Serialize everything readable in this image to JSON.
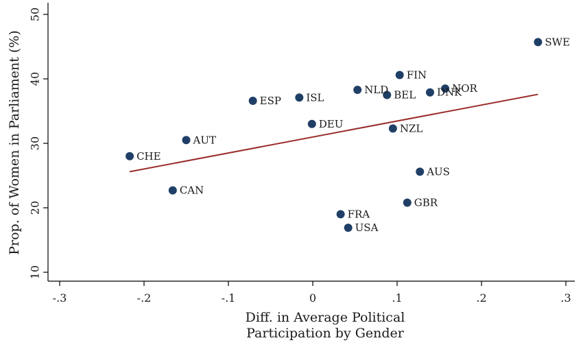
{
  "chart_data": {
    "type": "scatter",
    "title": "",
    "xlabel_lines": [
      "Diff. in Average Political",
      "Participation by Gender"
    ],
    "ylabel": "Prop. of Women in Parliament (%)",
    "xlim": [
      -0.3,
      0.3
    ],
    "ylim": [
      10,
      50
    ],
    "x_ticks": [
      {
        "value": -0.3,
        "label": "-.3"
      },
      {
        "value": -0.2,
        "label": "-.2"
      },
      {
        "value": -0.1,
        "label": "-.1"
      },
      {
        "value": 0,
        "label": "0"
      },
      {
        "value": 0.1,
        "label": ".1"
      },
      {
        "value": 0.2,
        "label": ".2"
      },
      {
        "value": 0.3,
        "label": ".3"
      }
    ],
    "y_ticks": [
      {
        "value": 10,
        "label": "10"
      },
      {
        "value": 20,
        "label": "20"
      },
      {
        "value": 30,
        "label": "30"
      },
      {
        "value": 40,
        "label": "40"
      },
      {
        "value": 50,
        "label": "50"
      }
    ],
    "grid": false,
    "point_color": "#1f3f66",
    "fit_line_color": "#9b2c2c",
    "points": [
      {
        "label": "SWE",
        "x": 0.267,
        "y": 45.7
      },
      {
        "label": "FIN",
        "x": 0.103,
        "y": 40.6
      },
      {
        "label": "NOR",
        "x": 0.157,
        "y": 38.5
      },
      {
        "label": "DNK",
        "x": 0.139,
        "y": 37.9
      },
      {
        "label": "NLD",
        "x": 0.053,
        "y": 38.3
      },
      {
        "label": "BEL",
        "x": 0.088,
        "y": 37.5
      },
      {
        "label": "ESP",
        "x": -0.071,
        "y": 36.6
      },
      {
        "label": "ISL",
        "x": -0.016,
        "y": 37.1
      },
      {
        "label": "DEU",
        "x": -0.001,
        "y": 33.0
      },
      {
        "label": "NZL",
        "x": 0.095,
        "y": 32.3
      },
      {
        "label": "AUT",
        "x": -0.15,
        "y": 30.5
      },
      {
        "label": "CHE",
        "x": -0.217,
        "y": 28.0
      },
      {
        "label": "AUS",
        "x": 0.127,
        "y": 25.6
      },
      {
        "label": "CAN",
        "x": -0.166,
        "y": 22.7
      },
      {
        "label": "GBR",
        "x": 0.112,
        "y": 20.8
      },
      {
        "label": "FRA",
        "x": 0.033,
        "y": 19.0
      },
      {
        "label": "USA",
        "x": 0.042,
        "y": 16.9
      }
    ],
    "fit_line": {
      "x": [
        -0.217,
        0.267
      ],
      "y": [
        25.6,
        37.6
      ]
    }
  }
}
